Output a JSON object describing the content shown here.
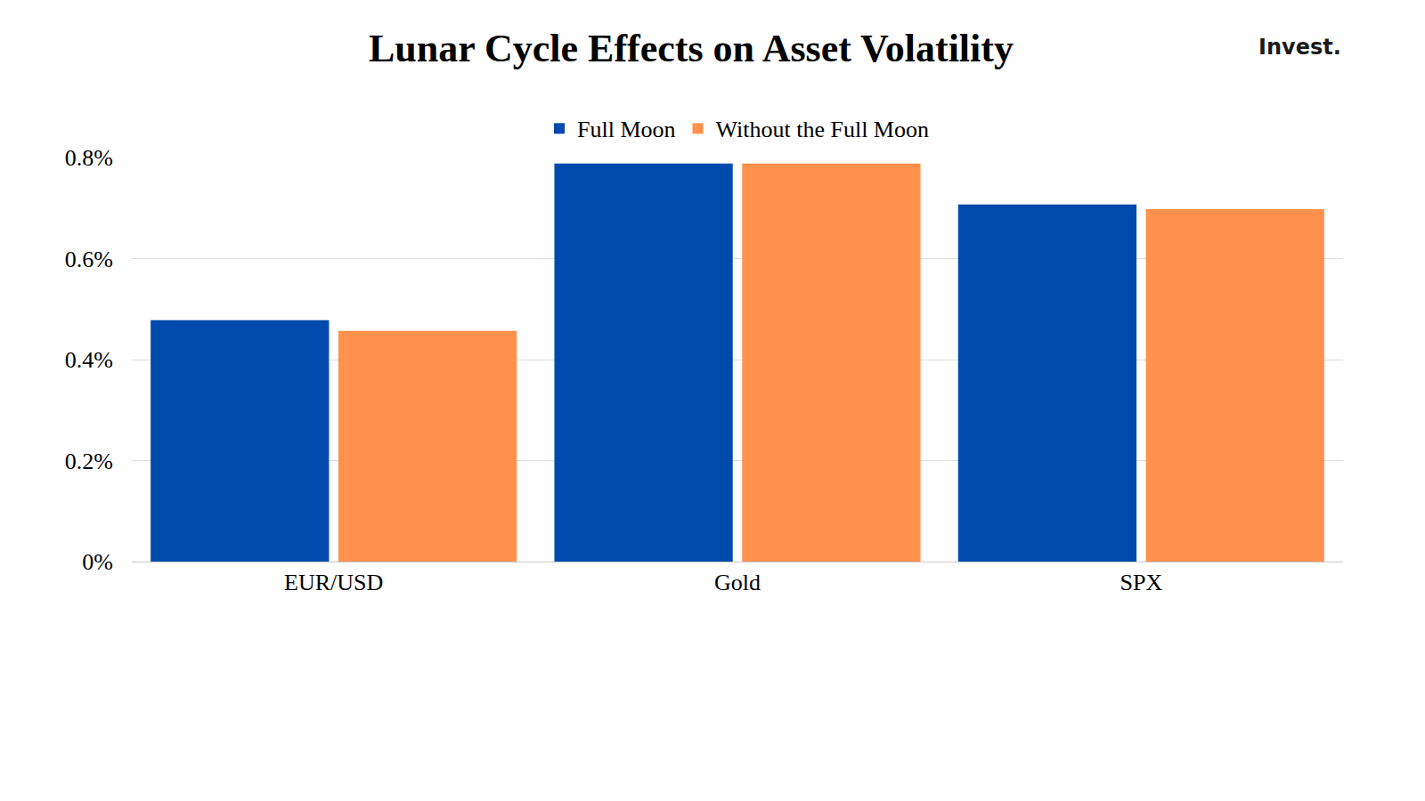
{
  "chart_data": {
    "type": "bar",
    "title": "Lunar Cycle Effects on Asset Volatility",
    "annotations": [
      "Invest."
    ],
    "categories": [
      "EUR/USD",
      "Gold",
      "SPX"
    ],
    "series": [
      {
        "name": "Full Moon",
        "color": "#004AAD",
        "values": [
          0.478,
          0.788,
          0.707
        ]
      },
      {
        "name": "Without the Full Moon",
        "color": "#FF914D",
        "values": [
          0.457,
          0.788,
          0.698
        ]
      }
    ],
    "ylim": [
      0,
      0.8
    ],
    "yticks": [
      {
        "value": 0,
        "label": "0%"
      },
      {
        "value": 0.2,
        "label": "0.2%"
      },
      {
        "value": 0.4,
        "label": "0.4%"
      },
      {
        "value": 0.6,
        "label": "0.6%"
      },
      {
        "value": 0.8,
        "label": "0.8%"
      }
    ],
    "grid": true,
    "legend": "top"
  }
}
